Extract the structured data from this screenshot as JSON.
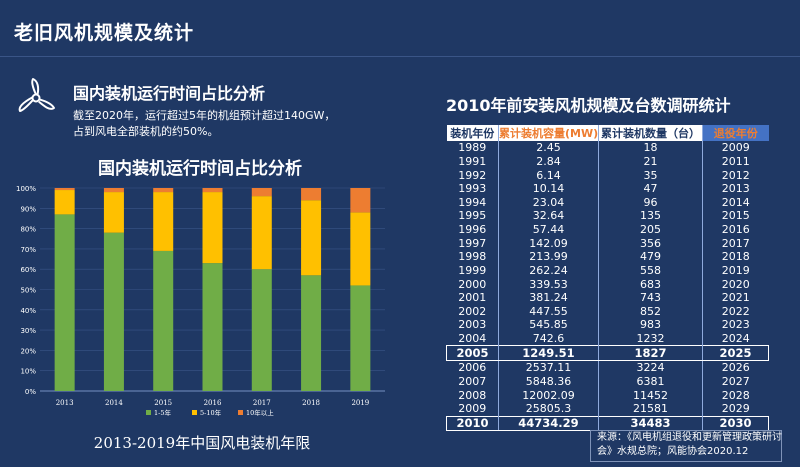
{
  "page": {
    "title": "老旧风机规模及统计"
  },
  "left_section": {
    "title": "国内装机运行时间占比分析",
    "description": "截至2020年，运行超过5年的机组预计超过140GW，占到风电全部装机的约50%。",
    "icon": "wind-turbine-icon"
  },
  "chart_data": {
    "type": "bar",
    "stacked": true,
    "title": "国内装机运行时间占比分析",
    "caption": "2013-2019年中国风电装机年限",
    "categories": [
      "2013",
      "2014",
      "2015",
      "2016",
      "2017",
      "2018",
      "2019"
    ],
    "series": [
      {
        "name": "1-5年",
        "color": "#70ad47",
        "values": [
          87,
          78,
          69,
          63,
          60,
          57,
          52
        ]
      },
      {
        "name": "5-10年",
        "color": "#ffc000",
        "values": [
          12,
          20,
          29,
          35,
          36,
          37,
          36
        ]
      },
      {
        "name": "10年以上",
        "color": "#ed7d31",
        "values": [
          1,
          2,
          2,
          2,
          4,
          6,
          12
        ]
      }
    ],
    "y_ticks": [
      "0%",
      "10%",
      "20%",
      "30%",
      "40%",
      "50%",
      "60%",
      "70%",
      "80%",
      "90%",
      "100%"
    ],
    "ylim": [
      0,
      100
    ],
    "grid": true,
    "legend": "bottom"
  },
  "table": {
    "title": "2010年前安装风机规模及台数调研统计",
    "headers": [
      "装机年份",
      "累计装机容量(MW)",
      "累计装机数量（台）",
      "退役年份"
    ],
    "rows": [
      [
        "1989",
        "2.45",
        "18",
        "2009"
      ],
      [
        "1991",
        "2.84",
        "21",
        "2011"
      ],
      [
        "1992",
        "6.14",
        "35",
        "2012"
      ],
      [
        "1993",
        "10.14",
        "47",
        "2013"
      ],
      [
        "1994",
        "23.04",
        "96",
        "2014"
      ],
      [
        "1995",
        "32.64",
        "135",
        "2015"
      ],
      [
        "1996",
        "57.44",
        "205",
        "2016"
      ],
      [
        "1997",
        "142.09",
        "356",
        "2017"
      ],
      [
        "1998",
        "213.99",
        "479",
        "2018"
      ],
      [
        "1999",
        "262.24",
        "558",
        "2019"
      ],
      [
        "2000",
        "339.53",
        "683",
        "2020"
      ],
      [
        "2001",
        "381.24",
        "743",
        "2021"
      ],
      [
        "2002",
        "447.55",
        "852",
        "2022"
      ],
      [
        "2003",
        "545.85",
        "983",
        "2023"
      ],
      [
        "2004",
        "742.6",
        "1232",
        "2024"
      ],
      [
        "2005",
        "1249.51",
        "1827",
        "2025"
      ],
      [
        "2006",
        "2537.11",
        "3224",
        "2026"
      ],
      [
        "2007",
        "5848.36",
        "6381",
        "2027"
      ],
      [
        "2008",
        "12002.09",
        "11452",
        "2028"
      ],
      [
        "2009",
        "25805.3",
        "21581",
        "2029"
      ],
      [
        "2010",
        "44734.29",
        "34483",
        "2030"
      ]
    ],
    "emphasized_rows": [
      15,
      20
    ]
  },
  "source": "来源：《风电机组退役和更新管理政策研讨会》水规总院；风能协会2020.12",
  "colors": {
    "background": "#1f3864",
    "accent": "#ed7d31",
    "header_highlight": "#4472c4"
  }
}
